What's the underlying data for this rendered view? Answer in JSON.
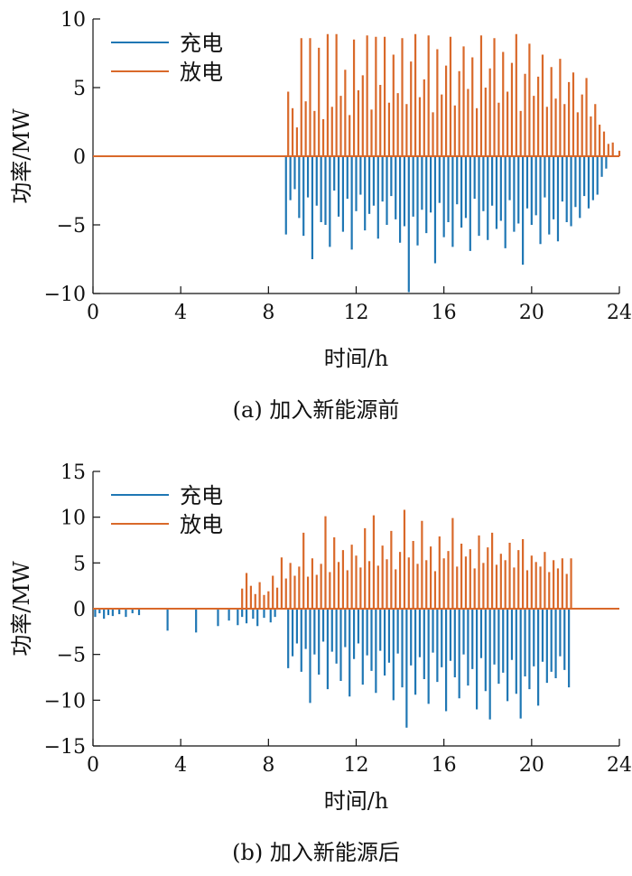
{
  "chart_data": [
    {
      "type": "bar",
      "caption": "(a) 加入新能源前",
      "xlabel": "时间/h",
      "ylabel": "功率/MW",
      "xlim": [
        0,
        24
      ],
      "ylim": [
        -10,
        10
      ],
      "xticks": [
        0,
        4,
        8,
        12,
        16,
        20,
        24
      ],
      "yticks": [
        -10,
        -5,
        0,
        5,
        10
      ],
      "colors": {
        "charge": "#1f77b4",
        "discharge": "#d9692a"
      },
      "legend": {
        "position": "top-left",
        "entries": [
          "充电",
          "放电"
        ]
      },
      "series": [
        {
          "name": "充电",
          "x": [
            8.8,
            9.0,
            9.2,
            9.4,
            9.6,
            9.8,
            10.0,
            10.2,
            10.4,
            10.6,
            10.8,
            11.0,
            11.2,
            11.4,
            11.6,
            11.8,
            12.0,
            12.2,
            12.4,
            12.6,
            12.8,
            13.0,
            13.2,
            13.4,
            13.6,
            13.8,
            14.0,
            14.2,
            14.4,
            14.6,
            14.8,
            15.0,
            15.2,
            15.4,
            15.6,
            15.8,
            16.0,
            16.2,
            16.4,
            16.6,
            16.8,
            17.0,
            17.2,
            17.4,
            17.6,
            17.8,
            18.0,
            18.2,
            18.4,
            18.6,
            18.8,
            19.0,
            19.2,
            19.4,
            19.6,
            19.8,
            20.0,
            20.2,
            20.4,
            20.6,
            20.8,
            21.0,
            21.2,
            21.4,
            21.6,
            21.8,
            22.0,
            22.2,
            22.4,
            22.6,
            22.8,
            23.0,
            23.2,
            23.4
          ],
          "values": [
            -5.7,
            -3.2,
            -2.4,
            -4.5,
            -5.8,
            -3.0,
            -7.5,
            -3.6,
            -4.8,
            -5.0,
            -6.6,
            -2.5,
            -4.4,
            -5.5,
            -3.1,
            -6.8,
            -4.0,
            -2.8,
            -5.4,
            -4.2,
            -3.6,
            -6.0,
            -3.3,
            -5.0,
            -2.9,
            -4.6,
            -6.3,
            -5.1,
            -9.9,
            -4.4,
            -6.5,
            -3.9,
            -5.6,
            -4.1,
            -7.8,
            -3.4,
            -5.9,
            -4.8,
            -6.6,
            -3.5,
            -5.2,
            -4.5,
            -6.9,
            -3.1,
            -5.8,
            -4.0,
            -6.1,
            -3.6,
            -5.3,
            -4.7,
            -6.7,
            -3.2,
            -5.5,
            -4.9,
            -7.9,
            -3.8,
            -5.0,
            -4.3,
            -6.4,
            -3.0,
            -5.7,
            -4.6,
            -6.2,
            -3.3,
            -4.8,
            -5.1,
            -3.7,
            -4.5,
            -2.9,
            -3.8,
            -3.2,
            -2.8,
            -1.5,
            -0.9
          ]
        },
        {
          "name": "放电",
          "x": [
            8.9,
            9.1,
            9.3,
            9.5,
            9.7,
            9.9,
            10.1,
            10.3,
            10.5,
            10.7,
            10.9,
            11.1,
            11.3,
            11.5,
            11.7,
            11.9,
            12.1,
            12.3,
            12.5,
            12.7,
            12.9,
            13.1,
            13.3,
            13.5,
            13.7,
            13.9,
            14.1,
            14.3,
            14.5,
            14.7,
            14.9,
            15.1,
            15.3,
            15.5,
            15.7,
            15.9,
            16.1,
            16.3,
            16.5,
            16.7,
            16.9,
            17.1,
            17.3,
            17.5,
            17.7,
            17.9,
            18.1,
            18.3,
            18.5,
            18.7,
            18.9,
            19.1,
            19.3,
            19.5,
            19.7,
            19.9,
            20.1,
            20.3,
            20.5,
            20.7,
            20.9,
            21.1,
            21.3,
            21.5,
            21.7,
            21.9,
            22.1,
            22.3,
            22.5,
            22.7,
            22.9,
            23.1,
            23.3,
            23.5,
            23.7,
            24.0
          ],
          "values": [
            4.7,
            3.5,
            2.1,
            8.6,
            4.0,
            8.6,
            3.3,
            7.9,
            2.7,
            8.9,
            3.6,
            8.9,
            4.4,
            6.3,
            3.0,
            8.5,
            4.8,
            5.9,
            8.8,
            3.4,
            8.7,
            5.2,
            8.7,
            3.9,
            7.4,
            4.6,
            8.6,
            3.8,
            6.9,
            8.9,
            4.3,
            5.6,
            8.8,
            3.2,
            7.8,
            4.5,
            6.6,
            8.7,
            3.7,
            6.2,
            8.0,
            4.9,
            7.2,
            3.5,
            8.8,
            5.0,
            6.4,
            8.6,
            3.9,
            7.6,
            4.7,
            6.8,
            8.9,
            3.3,
            6.0,
            8.2,
            4.4,
            5.8,
            7.4,
            3.6,
            6.5,
            4.2,
            7.1,
            3.8,
            5.4,
            6.1,
            3.2,
            4.5,
            5.7,
            2.9,
            3.8,
            2.3,
            1.8,
            0.9,
            1.0,
            0.4
          ]
        }
      ]
    },
    {
      "type": "bar",
      "caption": "(b) 加入新能源后",
      "xlabel": "时间/h",
      "ylabel": "功率/MW",
      "xlim": [
        0,
        24
      ],
      "ylim": [
        -15,
        15
      ],
      "xticks": [
        0,
        4,
        8,
        12,
        16,
        20,
        24
      ],
      "yticks": [
        -15,
        -10,
        -5,
        0,
        5,
        10,
        15
      ],
      "colors": {
        "charge": "#1f77b4",
        "discharge": "#d9692a"
      },
      "legend": {
        "position": "top-left",
        "entries": [
          "充电",
          "放电"
        ]
      },
      "series": [
        {
          "name": "充电",
          "x": [
            0.1,
            0.3,
            0.5,
            0.7,
            0.9,
            1.2,
            1.5,
            1.8,
            2.1,
            3.4,
            4.7,
            5.7,
            6.2,
            6.6,
            6.8,
            7.0,
            7.3,
            7.5,
            7.8,
            8.1,
            8.3,
            8.9,
            9.1,
            9.3,
            9.5,
            9.7,
            9.9,
            10.1,
            10.3,
            10.5,
            10.7,
            10.9,
            11.1,
            11.3,
            11.5,
            11.7,
            11.9,
            12.1,
            12.3,
            12.5,
            12.7,
            12.9,
            13.1,
            13.3,
            13.5,
            13.7,
            13.9,
            14.1,
            14.3,
            14.5,
            14.7,
            14.9,
            15.1,
            15.3,
            15.5,
            15.7,
            15.9,
            16.1,
            16.3,
            16.5,
            16.7,
            16.9,
            17.1,
            17.3,
            17.5,
            17.7,
            17.9,
            18.1,
            18.3,
            18.5,
            18.7,
            18.9,
            19.1,
            19.3,
            19.5,
            19.7,
            19.9,
            20.1,
            20.3,
            20.5,
            20.7,
            20.9,
            21.1,
            21.3,
            21.5,
            21.7
          ],
          "values": [
            -0.9,
            -0.5,
            -1.1,
            -0.7,
            -0.8,
            -0.6,
            -0.9,
            -0.5,
            -0.7,
            -2.4,
            -2.6,
            -1.9,
            -1.3,
            -1.8,
            -0.9,
            -1.6,
            -1.1,
            -1.9,
            -1.0,
            -1.5,
            -0.9,
            -6.5,
            -5.2,
            -3.8,
            -6.9,
            -4.4,
            -10.3,
            -5.0,
            -7.2,
            -3.6,
            -8.8,
            -4.7,
            -6.0,
            -7.9,
            -4.2,
            -9.6,
            -5.5,
            -3.8,
            -8.3,
            -5.1,
            -6.8,
            -9.2,
            -4.6,
            -7.3,
            -5.9,
            -10.0,
            -4.9,
            -8.6,
            -13.0,
            -6.2,
            -9.4,
            -5.3,
            -7.7,
            -10.4,
            -4.8,
            -8.0,
            -6.4,
            -11.2,
            -5.7,
            -7.5,
            -9.8,
            -5.0,
            -8.4,
            -6.6,
            -11.0,
            -5.4,
            -9.0,
            -12.1,
            -6.1,
            -8.2,
            -7.0,
            -10.1,
            -5.6,
            -9.3,
            -12.0,
            -7.4,
            -8.8,
            -6.3,
            -10.6,
            -5.8,
            -8.1,
            -6.9,
            -7.6,
            -5.2,
            -6.7,
            -8.6
          ]
        },
        {
          "name": "放电",
          "x": [
            6.8,
            7.0,
            7.2,
            7.4,
            7.6,
            7.8,
            8.0,
            8.2,
            8.4,
            8.6,
            8.8,
            9.0,
            9.2,
            9.4,
            9.6,
            9.8,
            10.0,
            10.2,
            10.4,
            10.6,
            10.8,
            11.0,
            11.2,
            11.4,
            11.6,
            11.8,
            12.0,
            12.2,
            12.4,
            12.6,
            12.8,
            13.0,
            13.2,
            13.4,
            13.6,
            13.8,
            14.0,
            14.2,
            14.4,
            14.6,
            14.8,
            15.0,
            15.2,
            15.4,
            15.6,
            15.8,
            16.0,
            16.2,
            16.4,
            16.6,
            16.8,
            17.0,
            17.2,
            17.4,
            17.6,
            17.8,
            18.0,
            18.2,
            18.4,
            18.6,
            18.8,
            19.0,
            19.2,
            19.4,
            19.6,
            19.8,
            20.0,
            20.2,
            20.4,
            20.6,
            20.8,
            21.0,
            21.2,
            21.4,
            21.6,
            21.8
          ],
          "values": [
            2.2,
            3.9,
            2.5,
            1.6,
            2.9,
            1.5,
            1.9,
            3.6,
            2.3,
            5.6,
            3.3,
            5.0,
            3.6,
            4.6,
            8.3,
            3.5,
            5.5,
            3.7,
            4.9,
            10.1,
            4.0,
            7.8,
            5.1,
            6.4,
            4.2,
            7.0,
            5.8,
            4.5,
            8.8,
            5.2,
            10.2,
            4.7,
            6.9,
            5.4,
            8.5,
            4.3,
            6.2,
            10.8,
            5.6,
            7.4,
            4.9,
            9.6,
            5.3,
            6.8,
            4.1,
            7.9,
            5.5,
            6.3,
            9.9,
            4.6,
            7.1,
            5.7,
            6.5,
            4.4,
            8.0,
            5.0,
            6.7,
            8.3,
            4.8,
            6.0,
            5.3,
            7.2,
            4.5,
            6.4,
            7.6,
            4.2,
            5.8,
            5.1,
            4.6,
            6.2,
            4.0,
            5.3,
            4.4,
            5.5,
            3.8,
            5.5
          ]
        }
      ]
    }
  ]
}
